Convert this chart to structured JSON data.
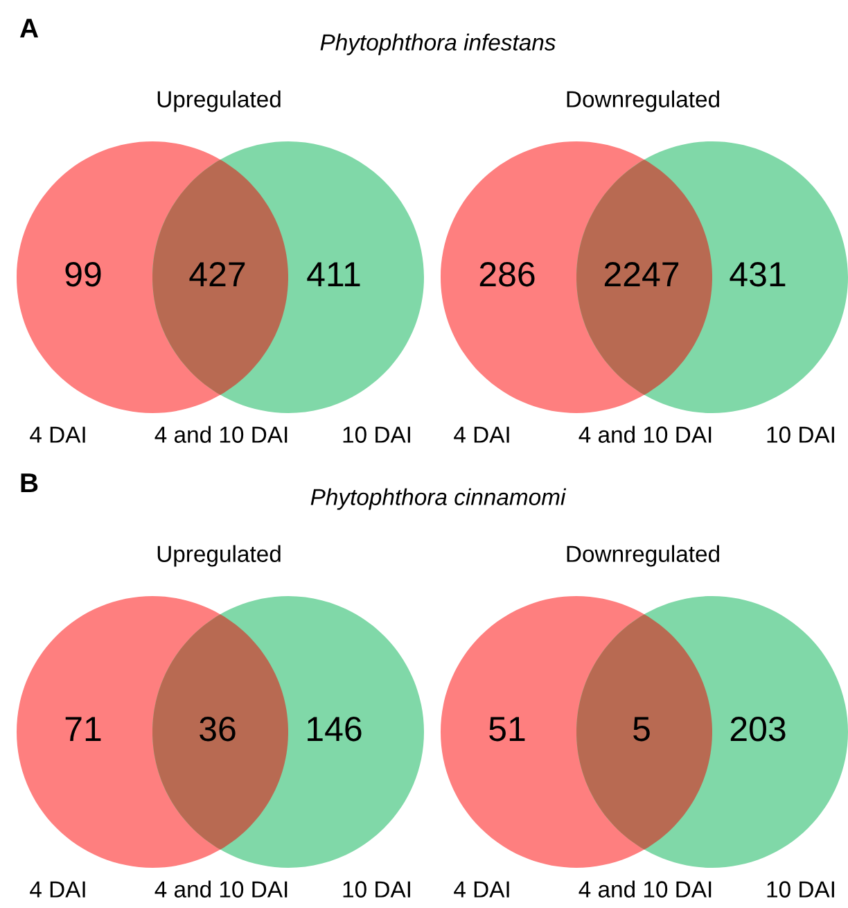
{
  "chart_data": [
    {
      "type": "other",
      "data_labels": true,
      "title": "Upregulated",
      "annotations": [
        "A",
        "Phytophthora infestans"
      ],
      "categories": [
        "4 DAI",
        "4 and 10 DAI",
        "10 DAI"
      ],
      "values": [
        99,
        427,
        411
      ],
      "colors": [
        "#fe7f7f",
        "#b86a52",
        "#80d8a8"
      ]
    },
    {
      "type": "other",
      "data_labels": true,
      "title": "Downregulated",
      "categories": [
        "4 DAI",
        "4 and 10 DAI",
        "10 DAI"
      ],
      "values": [
        286,
        2247,
        431
      ],
      "colors": [
        "#fe7f7f",
        "#b86a52",
        "#80d8a8"
      ]
    },
    {
      "type": "other",
      "data_labels": true,
      "title": "Upregulated",
      "annotations": [
        "B",
        "Phytophthora cinnamomi"
      ],
      "categories": [
        "4 DAI",
        "4 and 10 DAI",
        "10 DAI"
      ],
      "values": [
        71,
        36,
        146
      ],
      "colors": [
        "#fe7f7f",
        "#b86a52",
        "#80d8a8"
      ]
    },
    {
      "type": "other",
      "data_labels": true,
      "title": "Downregulated",
      "categories": [
        "4 DAI",
        "4 and 10 DAI",
        "10 DAI"
      ],
      "values": [
        51,
        5,
        203
      ],
      "colors": [
        "#fe7f7f",
        "#b86a52",
        "#80d8a8"
      ]
    }
  ]
}
